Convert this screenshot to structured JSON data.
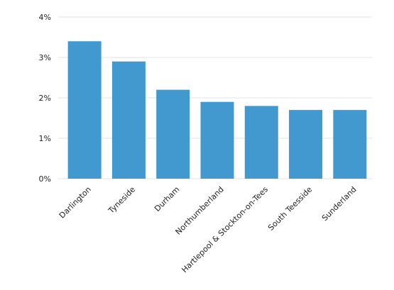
{
  "chart_data": {
    "type": "bar",
    "categories": [
      "Darlington",
      "Tyneside",
      "Durham",
      "Northumberland",
      "Hartlepool & Stockton-on-Tees",
      "South Teesside",
      "Sunderland"
    ],
    "values": [
      3.4,
      2.9,
      2.2,
      1.9,
      1.8,
      1.7,
      1.7
    ],
    "yticks": [
      "0%",
      "1%",
      "2%",
      "3%",
      "4%"
    ],
    "ylim": [
      0,
      4
    ],
    "title": "",
    "xlabel": "",
    "ylabel": "",
    "grid": true,
    "bar_color": "#4199cf"
  }
}
